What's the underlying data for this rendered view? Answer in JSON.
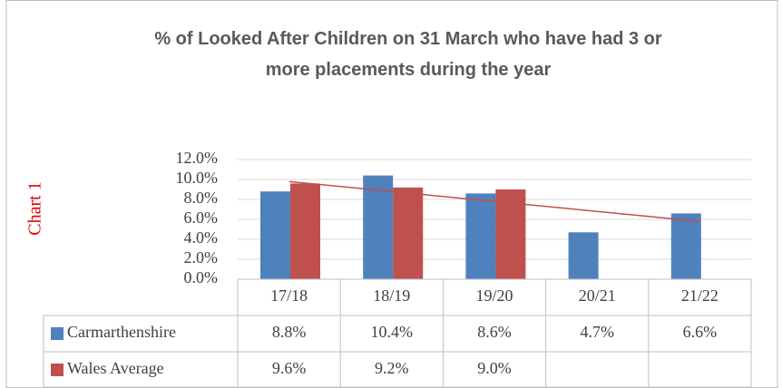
{
  "chart_data": {
    "type": "bar",
    "title": "% of Looked After Children on 31 March who have had 3 or more placements during the year",
    "annotation": "Chart 1",
    "categories": [
      "17/18",
      "18/19",
      "19/20",
      "20/21",
      "21/22"
    ],
    "series": [
      {
        "name": "Carmarthenshire",
        "color": "#4f81bd",
        "values": [
          8.8,
          10.4,
          8.6,
          4.7,
          6.6
        ],
        "value_labels": [
          "8.8%",
          "10.4%",
          "8.6%",
          "4.7%",
          "6.6%"
        ]
      },
      {
        "name": "Wales Average",
        "color": "#c0504d",
        "values": [
          9.6,
          9.2,
          9.0,
          null,
          null
        ],
        "value_labels": [
          "9.6%",
          "9.2%",
          "9.0%",
          null,
          null
        ]
      }
    ],
    "trendline": {
      "color": "#c0504d",
      "values": [
        9.8,
        5.8
      ]
    },
    "ylim": [
      0,
      12
    ],
    "yticks": [
      {
        "value": 0,
        "label": "0.0%"
      },
      {
        "value": 2,
        "label": "2.0%"
      },
      {
        "value": 4,
        "label": "4.0%"
      },
      {
        "value": 6,
        "label": "6.0%"
      },
      {
        "value": 8,
        "label": "8.0%"
      },
      {
        "value": 10,
        "label": "10.0%"
      },
      {
        "value": 12,
        "label": "12.0%"
      }
    ],
    "grid": true
  }
}
